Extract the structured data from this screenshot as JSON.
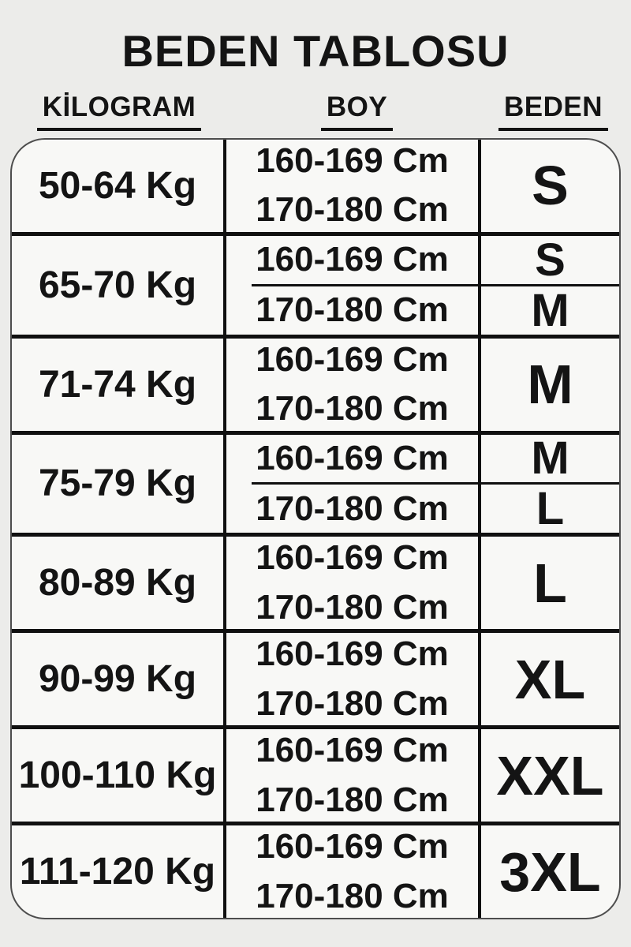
{
  "page": {
    "title": "BEDEN TABLOSU"
  },
  "colors": {
    "background": "#ececea",
    "table_fill": "#f8f8f6",
    "line": "#101010",
    "text": "#141414"
  },
  "table": {
    "headers": [
      {
        "id": "kilogram",
        "label": "KİLOGRAM"
      },
      {
        "id": "boy",
        "label": "BOY"
      },
      {
        "id": "beden",
        "label": "BEDEN"
      }
    ],
    "rows": [
      {
        "kg": "50-64 Kg",
        "entries": [
          {
            "boy": [
              "160-169 Cm",
              "170-180 Cm"
            ],
            "size": "S"
          }
        ]
      },
      {
        "kg": "65-70 Kg",
        "entries": [
          {
            "boy": [
              "160-169 Cm"
            ],
            "size": "S"
          },
          {
            "boy": [
              "170-180 Cm"
            ],
            "size": "M"
          }
        ]
      },
      {
        "kg": "71-74 Kg",
        "entries": [
          {
            "boy": [
              "160-169 Cm",
              "170-180 Cm"
            ],
            "size": "M"
          }
        ]
      },
      {
        "kg": "75-79 Kg",
        "entries": [
          {
            "boy": [
              "160-169 Cm"
            ],
            "size": "M"
          },
          {
            "boy": [
              "170-180 Cm"
            ],
            "size": "L"
          }
        ]
      },
      {
        "kg": "80-89 Kg",
        "entries": [
          {
            "boy": [
              "160-169 Cm",
              "170-180 Cm"
            ],
            "size": "L"
          }
        ]
      },
      {
        "kg": "90-99 Kg",
        "entries": [
          {
            "boy": [
              "160-169 Cm",
              "170-180 Cm"
            ],
            "size": "XL"
          }
        ]
      },
      {
        "kg": "100-110 Kg",
        "entries": [
          {
            "boy": [
              "160-169 Cm",
              "170-180 Cm"
            ],
            "size": "XXL"
          }
        ]
      },
      {
        "kg": "111-120 Kg",
        "entries": [
          {
            "boy": [
              "160-169 Cm",
              "170-180 Cm"
            ],
            "size": "3XL"
          }
        ]
      }
    ]
  }
}
